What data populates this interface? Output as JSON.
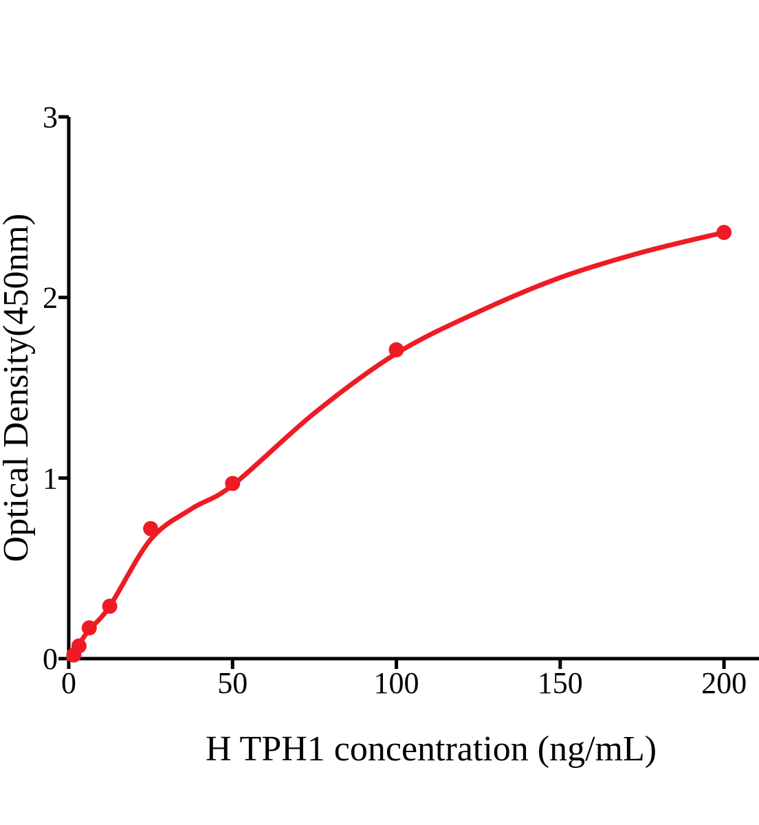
{
  "figure": {
    "background_color": "#ffffff"
  },
  "chart_data": {
    "type": "scatter",
    "title": "",
    "xlabel": "H TPH1 concentration (ng/mL)",
    "ylabel": "Optical Density(450nm)",
    "x_ticks": [
      0,
      50,
      100,
      150,
      200
    ],
    "y_ticks": [
      0,
      1,
      2,
      3
    ],
    "xlim": [
      0,
      210
    ],
    "ylim": [
      0,
      3
    ],
    "grid": false,
    "legend": "none",
    "axis_color": "#000000",
    "series": [
      {
        "name": "standard-points",
        "type": "scatter",
        "color": "#ED1C24",
        "points": [
          {
            "x": 1.5625,
            "y": 0.02
          },
          {
            "x": 3.125,
            "y": 0.07
          },
          {
            "x": 6.25,
            "y": 0.17
          },
          {
            "x": 12.5,
            "y": 0.29
          },
          {
            "x": 25,
            "y": 0.72
          },
          {
            "x": 50,
            "y": 0.97
          },
          {
            "x": 100,
            "y": 1.71
          },
          {
            "x": 200,
            "y": 2.36
          }
        ]
      },
      {
        "name": "fitted-curve",
        "type": "line",
        "color": "#ED1C24",
        "points": [
          {
            "x": 0,
            "y": 0.0
          },
          {
            "x": 3.125,
            "y": 0.08
          },
          {
            "x": 6.25,
            "y": 0.16
          },
          {
            "x": 12.5,
            "y": 0.29
          },
          {
            "x": 25,
            "y": 0.66
          },
          {
            "x": 37.5,
            "y": 0.83
          },
          {
            "x": 50,
            "y": 0.96
          },
          {
            "x": 75,
            "y": 1.36
          },
          {
            "x": 100,
            "y": 1.69
          },
          {
            "x": 125,
            "y": 1.92
          },
          {
            "x": 150,
            "y": 2.11
          },
          {
            "x": 175,
            "y": 2.25
          },
          {
            "x": 200,
            "y": 2.36
          }
        ]
      }
    ]
  }
}
